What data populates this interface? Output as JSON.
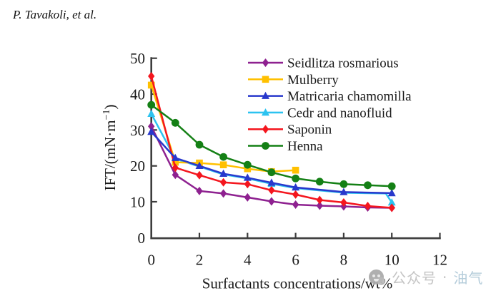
{
  "page": {
    "author_header": "P. Tavakoli, et al.",
    "background": "#ffffff"
  },
  "watermark": {
    "icon": "gray-emoji-face-icon",
    "prefix": "公众号",
    "separator": "·",
    "suffix": "油气"
  },
  "chart_data": {
    "type": "line",
    "title": "",
    "xlabel": "Surfactants concentrations/wt%",
    "ylabel": "IFT/(mN·m⁻¹)",
    "ylabel_parts": {
      "base": "IFT/(mN·m",
      "superscript": "−1",
      "close": ")"
    },
    "xlim": [
      0,
      12
    ],
    "ylim": [
      0,
      50
    ],
    "xticks": [
      0,
      2,
      4,
      6,
      8,
      10,
      12
    ],
    "yticks": [
      0,
      10,
      20,
      30,
      40,
      50
    ],
    "grid": false,
    "legend_position": "inside-top-right",
    "axis_color": "#3d3d3d",
    "text_color": "#1a1a1a",
    "series": [
      {
        "name": "Seidlitza rosmarious",
        "color": "#8e2190",
        "marker": "diamond",
        "x": [
          0,
          1,
          2,
          3,
          4,
          5,
          6,
          7,
          8,
          9,
          10
        ],
        "y": [
          31,
          17.5,
          13,
          12.3,
          11.2,
          10.1,
          9.2,
          8.9,
          8.7,
          8.4,
          8.3
        ]
      },
      {
        "name": "Mulberry",
        "color": "#ffc000",
        "marker": "square",
        "x": [
          0,
          1,
          2,
          3,
          4,
          5,
          6
        ],
        "y": [
          42.5,
          21,
          20.8,
          20.3,
          19.2,
          18.4,
          18.8
        ]
      },
      {
        "name": "Matricaria chamomilla",
        "color": "#2838cc",
        "marker": "triangle",
        "x": [
          0,
          1,
          2,
          3,
          4,
          5,
          6,
          8,
          10
        ],
        "y": [
          29.5,
          22.2,
          20,
          17.8,
          16.7,
          15.3,
          14,
          12.7,
          12.4
        ]
      },
      {
        "name": "Cedr and nanofluid",
        "color": "#2cc3f0",
        "marker": "triangle",
        "x": [
          0,
          5,
          10
        ],
        "y": [
          34.5,
          15,
          9.8
        ],
        "line_x": [
          0,
          1,
          2,
          3,
          4,
          5,
          6,
          8,
          9.75,
          10
        ],
        "line_y": [
          34.5,
          22,
          19.8,
          17.6,
          16.5,
          15,
          13.8,
          12.5,
          12.3,
          9.8
        ],
        "note": "connecting line mostly hidden behind Matricaria chamomilla curve"
      },
      {
        "name": "Saponin",
        "color": "#f4161e",
        "marker": "diamond",
        "x": [
          0,
          1,
          2,
          3,
          4,
          5,
          6,
          7,
          8,
          9,
          10
        ],
        "y": [
          45,
          19.5,
          17.4,
          15.4,
          14.9,
          13.2,
          12,
          10.5,
          9.8,
          8.8,
          8.3
        ]
      },
      {
        "name": "Henna",
        "color": "#148015",
        "marker": "circle",
        "x": [
          0,
          1,
          2,
          3,
          4,
          5,
          6,
          7,
          8,
          9,
          10
        ],
        "y": [
          37,
          32,
          25.9,
          22.5,
          20.3,
          18.2,
          16.5,
          15.6,
          14.9,
          14.6,
          14.3
        ]
      }
    ]
  }
}
